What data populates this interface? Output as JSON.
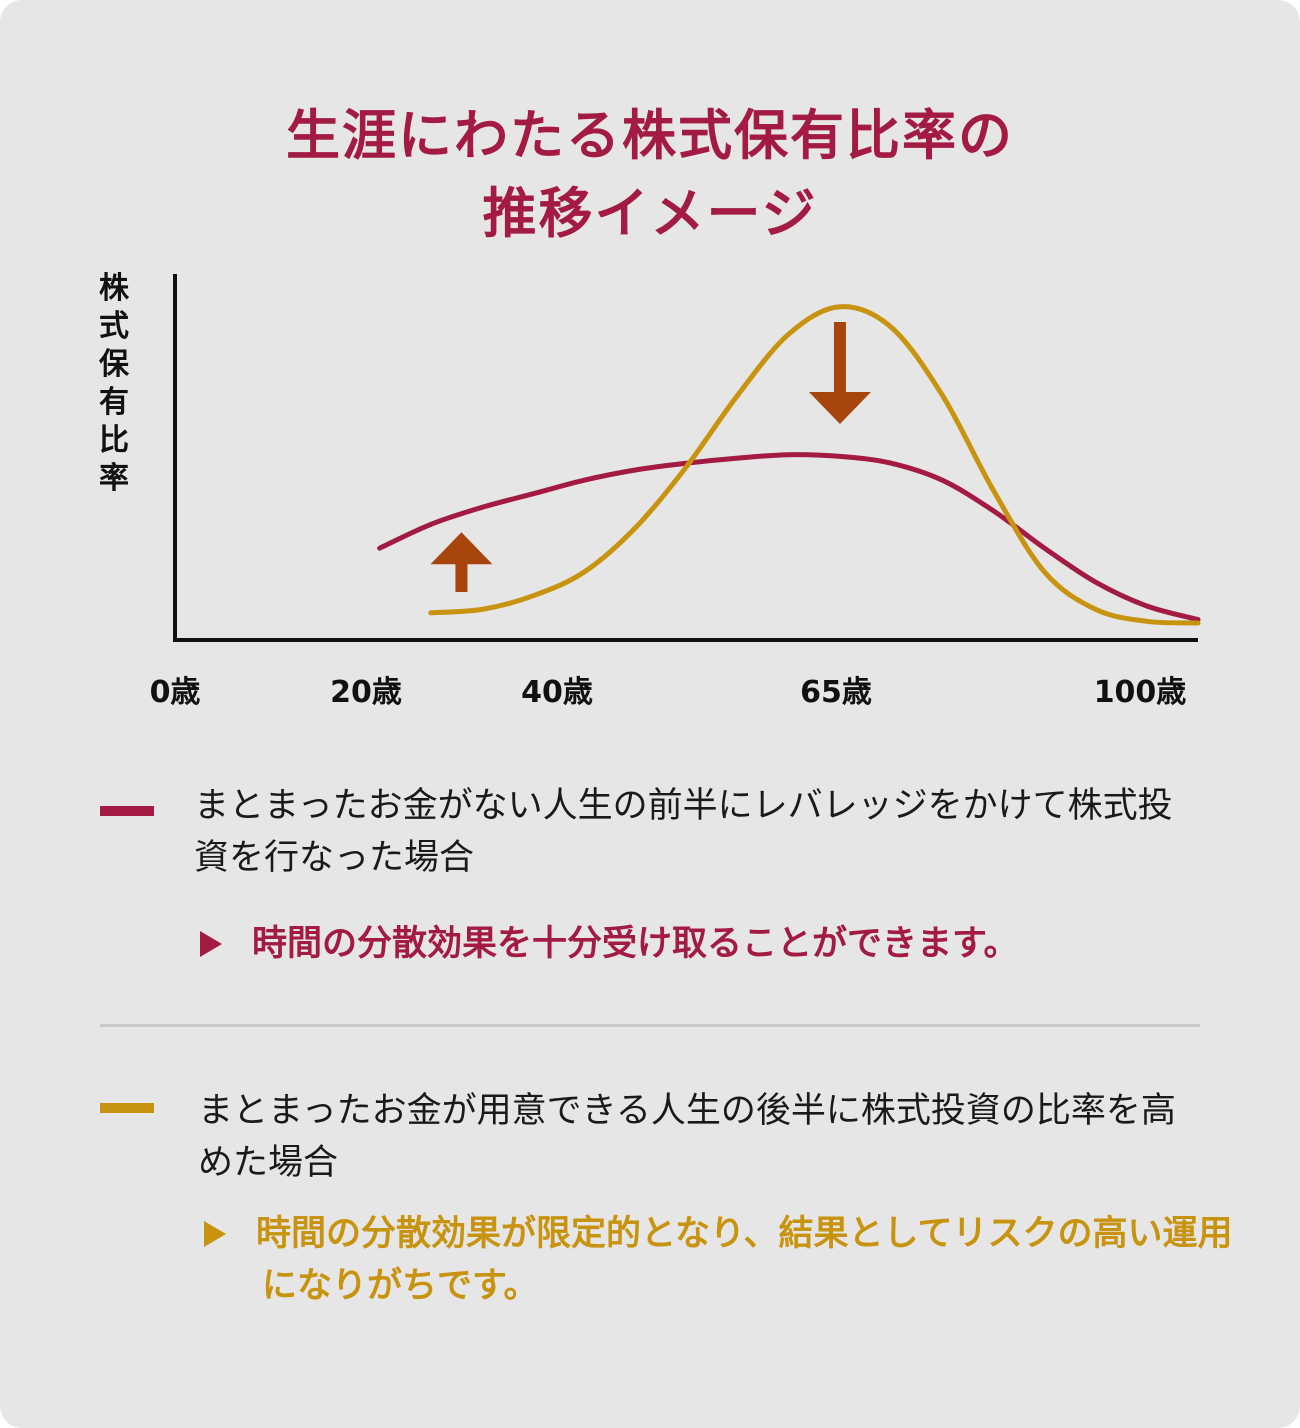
{
  "title": {
    "line1": "生涯にわたる株式保有比率の",
    "line2": "推移イメージ"
  },
  "colors": {
    "crimson": "#a31a42",
    "gold": "#c8930e",
    "arrow": "#a8450d",
    "axis": "#111111"
  },
  "chart_data": {
    "type": "line",
    "ylabel": "株式保有比率",
    "x_ticks": [
      {
        "value": 0,
        "label": "0歳"
      },
      {
        "value": 20,
        "label": "20歳"
      },
      {
        "value": 40,
        "label": "40歳"
      },
      {
        "value": 65,
        "label": "65歳"
      },
      {
        "value": 100,
        "label": "100歳"
      }
    ],
    "xlim": [
      0,
      100
    ],
    "ylim": [
      0,
      1
    ],
    "series": [
      {
        "key": "leverage",
        "color": "#a31a42",
        "points": [
          [
            20,
            0.27
          ],
          [
            25,
            0.34
          ],
          [
            30,
            0.39
          ],
          [
            35,
            0.43
          ],
          [
            40,
            0.47
          ],
          [
            45,
            0.5
          ],
          [
            50,
            0.52
          ],
          [
            55,
            0.535
          ],
          [
            60,
            0.545
          ],
          [
            65,
            0.54
          ],
          [
            70,
            0.52
          ],
          [
            75,
            0.47
          ],
          [
            80,
            0.38
          ],
          [
            85,
            0.27
          ],
          [
            90,
            0.17
          ],
          [
            95,
            0.1
          ],
          [
            100,
            0.06
          ]
        ]
      },
      {
        "key": "late",
        "color": "#c8930e",
        "points": [
          [
            25,
            0.08
          ],
          [
            30,
            0.09
          ],
          [
            35,
            0.13
          ],
          [
            40,
            0.2
          ],
          [
            45,
            0.33
          ],
          [
            50,
            0.51
          ],
          [
            55,
            0.72
          ],
          [
            60,
            0.9
          ],
          [
            65,
            0.98
          ],
          [
            70,
            0.92
          ],
          [
            75,
            0.72
          ],
          [
            80,
            0.44
          ],
          [
            85,
            0.2
          ],
          [
            90,
            0.09
          ],
          [
            95,
            0.055
          ],
          [
            100,
            0.05
          ]
        ]
      }
    ],
    "annotations": [
      {
        "type": "arrow-up",
        "x": 28,
        "series": "leverage"
      },
      {
        "type": "arrow-down",
        "x": 65,
        "series": "late"
      }
    ]
  },
  "legend": [
    {
      "color": "#a31a42",
      "description": "まとまったお金がない人生の前半にレバレッジをかけて株式投資を行なった場合",
      "note": "時間の分散効果を十分受け取ることができます。"
    },
    {
      "color": "#c8930e",
      "description": "まとまったお金が用意できる人生の後半に株式投資の比率を高めた場合",
      "note": "時間の分散効果が限定的となり、結果としてリスクの高い運用になりがちです。"
    }
  ]
}
